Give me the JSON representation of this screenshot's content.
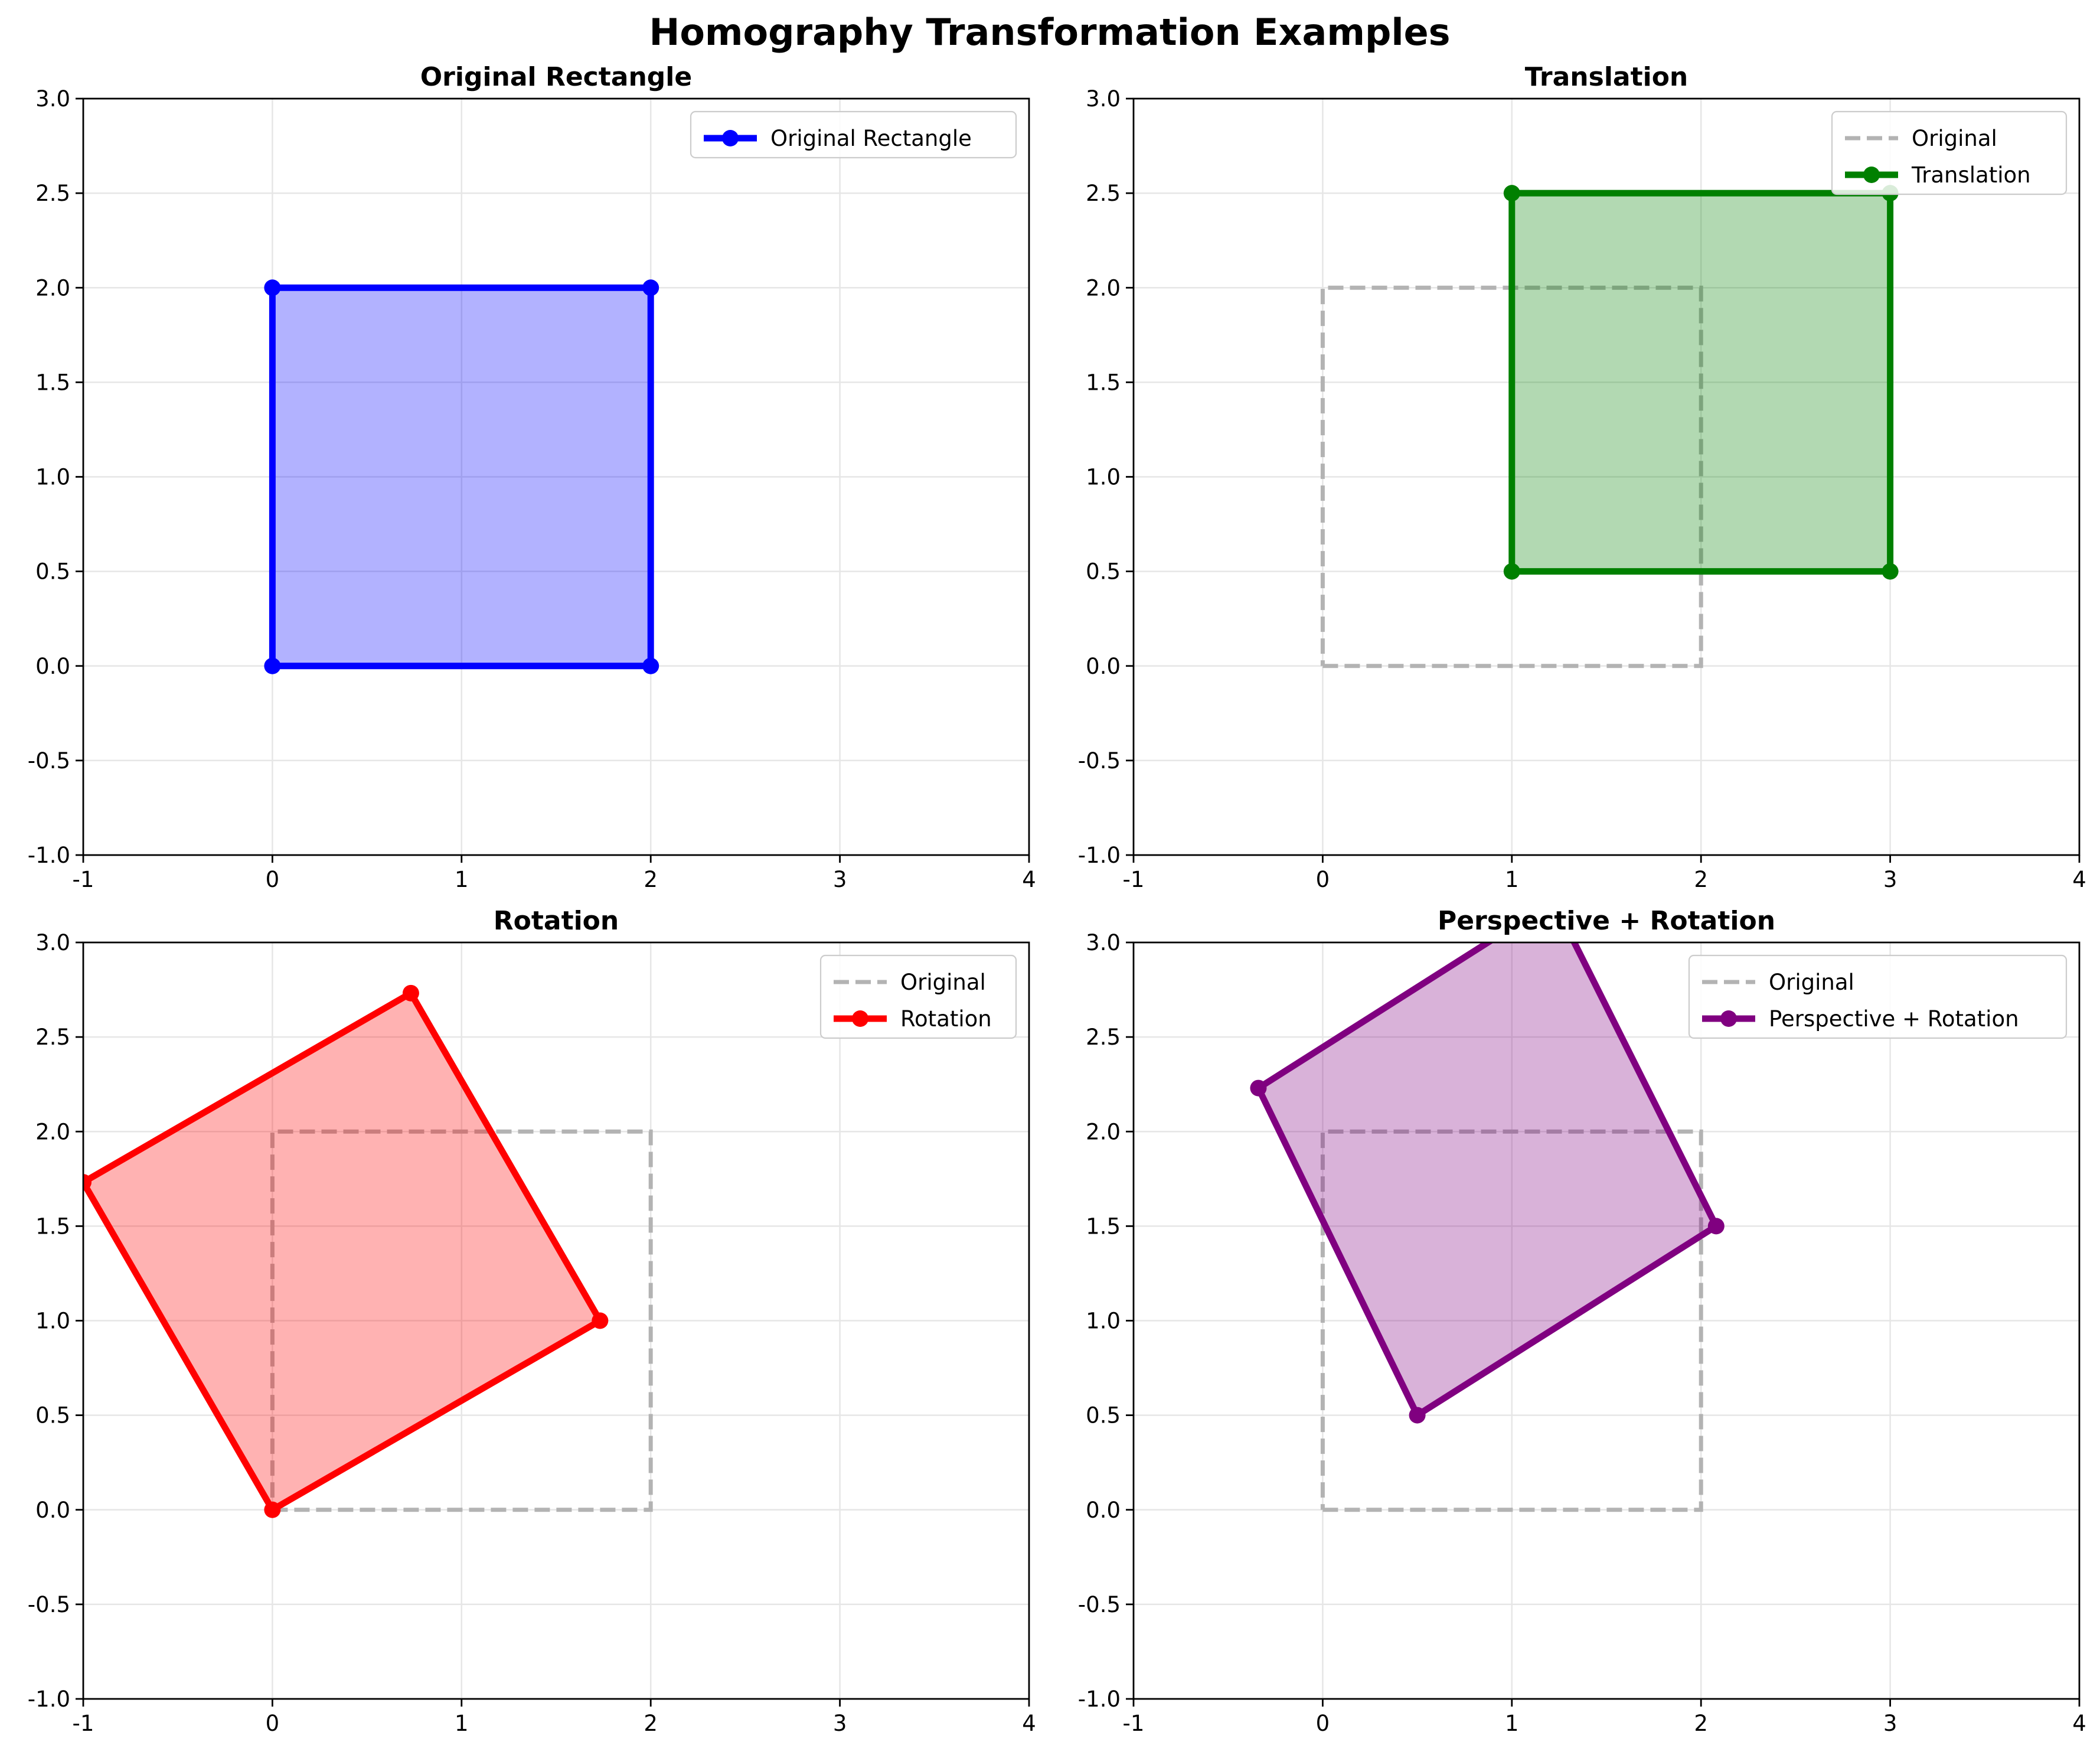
{
  "figure_title": "Homography Transformation Examples",
  "colors": {
    "original_rectangle": "#0000ff",
    "translation": "#008000",
    "rotation": "#ff0000",
    "perspective_rotation": "#800080",
    "reference_outline": "#b3b3b3"
  },
  "chart_data": [
    {
      "type": "line",
      "title": "Original Rectangle",
      "xlim": [
        -1,
        4
      ],
      "ylim": [
        -1,
        3
      ],
      "xticks": [
        -1,
        0,
        1,
        2,
        3,
        4
      ],
      "yticks": [
        -1.0,
        -0.5,
        0.0,
        0.5,
        1.0,
        1.5,
        2.0,
        2.5,
        3.0
      ],
      "x_tick_labels": [
        "-1",
        "0",
        "1",
        "2",
        "3",
        "4"
      ],
      "y_tick_labels": [
        "-1.0",
        "-0.5",
        "0.0",
        "0.5",
        "1.0",
        "1.5",
        "2.0",
        "2.5",
        "3.0"
      ],
      "grid": true,
      "legend_position": "top-right",
      "show_original_outline": false,
      "original_label": "",
      "original": [
        [
          0,
          0
        ],
        [
          2,
          0
        ],
        [
          2,
          2
        ],
        [
          0,
          2
        ]
      ],
      "shape": {
        "name": "Original Rectangle",
        "color": "#0000ff",
        "points": [
          [
            0,
            0
          ],
          [
            2,
            0
          ],
          [
            2,
            2
          ],
          [
            0,
            2
          ]
        ]
      }
    },
    {
      "type": "line",
      "title": "Translation",
      "xlim": [
        -1,
        4
      ],
      "ylim": [
        -1,
        3
      ],
      "xticks": [
        -1,
        0,
        1,
        2,
        3,
        4
      ],
      "yticks": [
        -1.0,
        -0.5,
        0.0,
        0.5,
        1.0,
        1.5,
        2.0,
        2.5,
        3.0
      ],
      "x_tick_labels": [
        "-1",
        "0",
        "1",
        "2",
        "3",
        "4"
      ],
      "y_tick_labels": [
        "-1.0",
        "-0.5",
        "0.0",
        "0.5",
        "1.0",
        "1.5",
        "2.0",
        "2.5",
        "3.0"
      ],
      "grid": true,
      "legend_position": "top-right",
      "show_original_outline": true,
      "original_label": "Original",
      "original": [
        [
          0,
          0
        ],
        [
          2,
          0
        ],
        [
          2,
          2
        ],
        [
          0,
          2
        ]
      ],
      "shape": {
        "name": "Translation",
        "color": "#008000",
        "points": [
          [
            1,
            0.5
          ],
          [
            3,
            0.5
          ],
          [
            3,
            2.5
          ],
          [
            1,
            2.5
          ]
        ]
      }
    },
    {
      "type": "line",
      "title": "Rotation",
      "xlim": [
        -1,
        4
      ],
      "ylim": [
        -1,
        3
      ],
      "xticks": [
        -1,
        0,
        1,
        2,
        3,
        4
      ],
      "yticks": [
        -1.0,
        -0.5,
        0.0,
        0.5,
        1.0,
        1.5,
        2.0,
        2.5,
        3.0
      ],
      "x_tick_labels": [
        "-1",
        "0",
        "1",
        "2",
        "3",
        "4"
      ],
      "y_tick_labels": [
        "-1.0",
        "-0.5",
        "0.0",
        "0.5",
        "1.0",
        "1.5",
        "2.0",
        "2.5",
        "3.0"
      ],
      "grid": true,
      "legend_position": "top-right",
      "show_original_outline": true,
      "original_label": "Original",
      "original": [
        [
          0,
          0
        ],
        [
          2,
          0
        ],
        [
          2,
          2
        ],
        [
          0,
          2
        ]
      ],
      "shape": {
        "name": "Rotation",
        "color": "#ff0000",
        "points": [
          [
            0,
            0
          ],
          [
            1.732,
            1.0
          ],
          [
            0.732,
            2.732
          ],
          [
            -1.0,
            1.732
          ]
        ]
      }
    },
    {
      "type": "line",
      "title": "Perspective + Rotation",
      "xlim": [
        -1,
        4
      ],
      "ylim": [
        -1,
        3
      ],
      "xticks": [
        -1,
        0,
        1,
        2,
        3,
        4
      ],
      "yticks": [
        -1.0,
        -0.5,
        0.0,
        0.5,
        1.0,
        1.5,
        2.0,
        2.5,
        3.0
      ],
      "x_tick_labels": [
        "-1",
        "0",
        "1",
        "2",
        "3",
        "4"
      ],
      "y_tick_labels": [
        "-1.0",
        "-0.5",
        "0.0",
        "0.5",
        "1.0",
        "1.5",
        "2.0",
        "2.5",
        "3.0"
      ],
      "grid": true,
      "legend_position": "top-right",
      "show_original_outline": true,
      "original_label": "Original",
      "original": [
        [
          0,
          0
        ],
        [
          2,
          0
        ],
        [
          2,
          2
        ],
        [
          0,
          2
        ]
      ],
      "shape": {
        "name": "Perspective + Rotation",
        "color": "#800080",
        "points": [
          [
            0.5,
            0.5
          ],
          [
            2.08,
            1.5
          ],
          [
            1.22,
            3.22
          ],
          [
            -0.34,
            2.23
          ]
        ]
      }
    }
  ]
}
